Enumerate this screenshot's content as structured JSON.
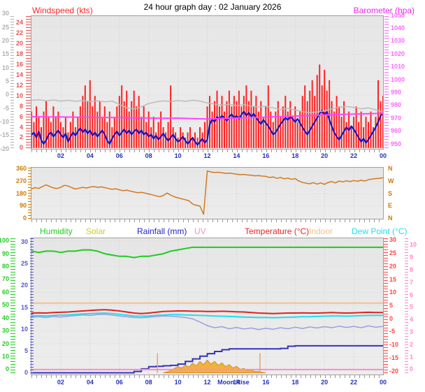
{
  "title": "24 hour graph day : 02 January 2026",
  "x_axis": {
    "labels": [
      "02",
      "04",
      "06",
      "08",
      "10",
      "12",
      "14",
      "16",
      "18",
      "20",
      "22",
      "00"
    ],
    "hours": [
      2,
      4,
      6,
      8,
      10,
      12,
      14,
      16,
      18,
      20,
      22,
      24
    ]
  },
  "legend": [
    {
      "label": "Humidity",
      "color": "#22cc22"
    },
    {
      "label": "Solar",
      "color": "#cccc22"
    },
    {
      "label": "Rainfall (mm)",
      "color": "#2222cc"
    },
    {
      "label": "UV",
      "color": "#ff88cc"
    },
    {
      "label": "Temperature (°C)",
      "color": "#ee2222"
    },
    {
      "label": "Indoor",
      "color": "#f0c090"
    },
    {
      "label": "Dew Point (°C)",
      "color": "#22ddee"
    }
  ],
  "annotations": {
    "moon_rise": "Moon Rise",
    "moon_rise_hour": 12.7
  },
  "chart_data": [
    {
      "id": "wind",
      "type": "composite",
      "title_left": "Windspeed (kts)",
      "title_right": "Barometer (hpa)",
      "grid_axis": "gray",
      "axes": {
        "gray": {
          "color": "#b0b0b0",
          "v_top": 29.2,
          "v_bottom": -20,
          "tick_values": [
            30,
            25,
            20,
            15,
            10,
            5,
            0,
            -5,
            -10,
            -15,
            -20
          ]
        },
        "wind": {
          "color": "#e85050",
          "v_top": 25.3,
          "v_bottom": -0.15,
          "tick_values": [
            24,
            22,
            20,
            18,
            16,
            14,
            12,
            10,
            8,
            6,
            4,
            2,
            0
          ]
        },
        "baro": {
          "color": "#ff66ff",
          "v_top": 1049.5,
          "v_bottom": 946.2,
          "tick_values": [
            1050,
            1040,
            1030,
            1020,
            1010,
            1000,
            990,
            980,
            970,
            960,
            950
          ]
        }
      },
      "series": [
        {
          "name": "wind-gust-bars",
          "axis": "wind",
          "type": "bars",
          "color": "#ff2020",
          "width": 2,
          "x0": 0,
          "dx": 0.166667,
          "values": [
            7,
            5,
            8,
            6,
            4,
            7,
            9,
            6,
            5,
            8,
            6,
            7,
            5,
            4,
            6,
            3,
            5,
            7,
            4,
            6,
            8,
            10,
            12,
            9,
            13,
            8,
            10,
            7,
            9,
            6,
            8,
            5,
            7,
            4,
            6,
            8,
            10,
            12,
            9,
            11,
            7,
            9,
            11,
            8,
            10,
            6,
            8,
            5,
            7,
            4,
            6,
            3,
            5,
            7,
            4,
            3,
            5,
            12,
            4,
            3,
            2,
            4,
            3,
            2,
            3,
            4,
            2,
            3,
            2,
            4,
            3,
            5,
            8,
            10,
            7,
            9,
            11,
            8,
            10,
            7,
            9,
            11,
            8,
            10,
            9,
            11,
            8,
            10,
            12,
            9,
            11,
            8,
            10,
            7,
            9,
            6,
            8,
            12,
            7,
            5,
            7,
            9,
            6,
            8,
            10,
            7,
            9,
            6,
            8,
            5,
            7,
            10,
            12,
            9,
            11,
            13,
            10,
            14,
            16,
            12,
            15,
            11,
            13,
            9,
            7,
            10,
            8,
            6,
            9,
            5,
            7,
            4,
            6,
            8,
            5,
            7,
            4,
            6,
            5,
            7,
            4,
            6,
            13,
            9,
            10
          ]
        },
        {
          "name": "wind-average",
          "axis": "wind",
          "type": "line",
          "color": "#0011cc",
          "width": 2,
          "x0": 0,
          "dx": 0.166667,
          "values": [
            2.5,
            3,
            2,
            3.2,
            1.5,
            0.8,
            1.5,
            2.6,
            3,
            2.2,
            2.8,
            3.4,
            2.6,
            2,
            2.8,
            1.2,
            2.2,
            3,
            2.4,
            3.2,
            3.8,
            3,
            3.6,
            2.8,
            3.4,
            2.4,
            3,
            2.2,
            2.8,
            3.4,
            2.6,
            1.4,
            0.8,
            1.8,
            2.6,
            3.2,
            2.4,
            3,
            3.6,
            2.8,
            3.4,
            2.6,
            3.2,
            3.6,
            2.8,
            3.4,
            2.6,
            3,
            2.2,
            2.6,
            1.8,
            2.4,
            1.6,
            2.2,
            2.8,
            2,
            1.4,
            2,
            2.6,
            1.8,
            1.2,
            1.6,
            2.2,
            1.4,
            0.8,
            1.4,
            2,
            1.2,
            0.6,
            1.2,
            1.8,
            1,
            1.6,
            4.5,
            5.5,
            5,
            6,
            5.5,
            6.2,
            5.8,
            5.2,
            6,
            6.5,
            5.8,
            6.2,
            5.6,
            6.4,
            7,
            6.2,
            6.8,
            6,
            6.6,
            5.8,
            5.2,
            4.6,
            5.4,
            4.8,
            4.2,
            3.4,
            2.6,
            3,
            3.8,
            4.6,
            5.2,
            5.8,
            5.4,
            6,
            5.6,
            5,
            5.6,
            4.8,
            4,
            3.2,
            2.6,
            3.4,
            4.2,
            5,
            5.8,
            6.6,
            7.2,
            6.4,
            7,
            5.4,
            4.2,
            3,
            2.2,
            1.6,
            2.4,
            3.2,
            4,
            3.4,
            4.2,
            3.6,
            2.8,
            2,
            1.2,
            1.8,
            1,
            1.6,
            2.4,
            3.2,
            4,
            5,
            6.2,
            6.8
          ]
        },
        {
          "name": "gray-line",
          "axis": "gray",
          "type": "line",
          "color": "#bcbcbc",
          "width": 1.5,
          "x0": 0,
          "dx": 0.5,
          "values": [
            -2,
            -1.8,
            -2.2,
            -1.9,
            -2.3,
            -2,
            -2.4,
            -2.1,
            -2.5,
            -2.2,
            -2.6,
            -2.3,
            -3.5,
            -4.8,
            -5.2,
            -4.4,
            -3.2,
            -2.6,
            -2.2,
            -2.5,
            -2.1,
            -2.4,
            -2,
            -2.3,
            -3,
            -3.4,
            -3.8,
            -3.5,
            -4,
            -3.6,
            -4.2,
            -4.5,
            -4.2,
            -4.8,
            -5.4,
            -5,
            -5.6,
            -6.2,
            -6.6,
            -6.3,
            -6,
            -5.2,
            -4.6,
            -4.3,
            -4.6,
            -5.2,
            -4.8,
            -5.6,
            -6.4
          ]
        },
        {
          "name": "barometer",
          "axis": "baro",
          "type": "line",
          "color": "#ff44ff",
          "width": 2,
          "x0": 0,
          "dx": 1,
          "values": [
            971.2,
            971.1,
            971,
            970.9,
            970.7,
            970.6,
            970.5,
            970.3,
            970.2,
            970,
            970.1,
            969.7,
            969.4,
            969.8,
            970.1,
            970.5,
            970.9,
            971.3,
            971.7,
            972.1,
            972.5,
            972.9,
            973.2,
            973.5,
            973.8
          ]
        }
      ]
    },
    {
      "id": "dir",
      "type": "line",
      "grid_axis": "deg",
      "axes": {
        "deg": {
          "color": "#cc7a00",
          "v_top": 369,
          "v_bottom": -2,
          "tick_values": [
            360,
            270,
            180,
            90,
            0
          ]
        },
        "compass": {
          "color": "#cc7a00",
          "v_top": 369,
          "v_bottom": -2,
          "tick_values": [
            360,
            270,
            180,
            90,
            0
          ],
          "tick_texts": [
            "N",
            "W",
            "S",
            "E",
            "N"
          ]
        }
      },
      "series": [
        {
          "name": "wind-direction",
          "axis": "deg",
          "type": "line",
          "color": "#d2791e",
          "width": 1.5,
          "x0": 0,
          "dx": 0.25,
          "values": [
            215,
            224,
            218,
            232,
            244,
            233,
            222,
            218,
            226,
            241,
            236,
            224,
            214,
            220,
            226,
            221,
            228,
            232,
            226,
            230,
            224,
            218,
            212,
            216,
            208,
            202,
            206,
            199,
            193,
            187,
            190,
            184,
            178,
            172,
            164,
            158,
            166,
            185,
            170,
            158,
            150,
            143,
            136,
            128,
            105,
            95,
            90,
            30,
            345,
            338,
            334,
            336,
            332,
            328,
            330,
            326,
            322,
            318,
            320,
            316,
            314,
            310,
            312,
            308,
            306,
            298,
            302,
            292,
            298,
            288,
            294,
            284,
            290,
            272,
            262,
            256,
            252,
            260,
            250,
            258,
            248,
            262,
            268,
            258,
            272,
            266,
            274,
            268,
            276,
            270,
            278,
            272,
            282,
            286,
            290,
            292,
            296
          ]
        }
      ]
    },
    {
      "id": "multi",
      "type": "composite",
      "grid_axis": "hum",
      "axes": {
        "hum": {
          "color": "#22cc22",
          "v_top": 102,
          "v_bottom": -3.8,
          "tick_values": [
            100,
            90,
            80,
            70,
            60,
            50,
            40,
            30,
            20,
            10,
            0
          ]
        },
        "rain": {
          "color": "#5555cc",
          "v_top": 30.9,
          "v_bottom": -0.4,
          "tick_values": [
            30,
            25,
            20,
            15,
            10,
            5,
            0
          ]
        },
        "temp": {
          "color": "#ff4444",
          "v_top": 30.8,
          "v_bottom": -21.3,
          "tick_values": [
            30,
            25,
            20,
            15,
            10,
            5,
            0,
            -5,
            -10,
            -15,
            -20
          ]
        },
        "uv": {
          "color": "#ff88cc",
          "v_top": 10.55,
          "v_bottom": -0.4,
          "tick_values": [
            10,
            9,
            8,
            7,
            6,
            5,
            4,
            3,
            2,
            1,
            0
          ]
        }
      },
      "series": [
        {
          "name": "humidity",
          "axis": "hum",
          "type": "line",
          "color": "#1ecc1e",
          "width": 2,
          "x0": 0,
          "dx": 0.5,
          "values": [
            92,
            91,
            92,
            92,
            91,
            92,
            92,
            93,
            93,
            92,
            90,
            89,
            88,
            88,
            87,
            88,
            88,
            89,
            90,
            92,
            93,
            94,
            95,
            95,
            95,
            95,
            95,
            95,
            95,
            95,
            95,
            95,
            95,
            95,
            95,
            95,
            95,
            95,
            95,
            95,
            95,
            95,
            95,
            95,
            95,
            95,
            95,
            95,
            95
          ]
        },
        {
          "name": "indoor",
          "axis": "temp",
          "type": "line",
          "color": "#f5c08a",
          "width": 2,
          "x0": 0,
          "dx": 24,
          "values": [
            6,
            6
          ]
        },
        {
          "name": "temperature",
          "axis": "temp",
          "type": "line",
          "color": "#dd2222",
          "width": 2,
          "x0": 0,
          "dx": 0.5,
          "values": [
            2.2,
            2.3,
            2.2,
            2.4,
            2.5,
            2.6,
            2.8,
            3,
            3.2,
            3.4,
            3.5,
            3.3,
            3,
            2.6,
            2.2,
            2,
            2.2,
            2.5,
            2.8,
            2.9,
            3,
            3,
            2.9,
            2.9,
            2.8,
            2.8,
            2.9,
            2.8,
            2.7,
            2.6,
            2.4,
            2.2,
            2.1,
            2,
            2.1,
            2.2,
            2.2,
            2.3,
            2.2,
            2.2,
            2.3,
            2.4,
            2.3,
            2.2,
            2.3,
            2.4,
            2.5,
            2.4,
            2.4
          ]
        },
        {
          "name": "dew-point",
          "axis": "temp",
          "type": "line",
          "color": "#22ddee",
          "width": 2,
          "x0": 0,
          "dx": 0.5,
          "values": [
            1.2,
            1.2,
            1.1,
            1.3,
            1.4,
            1.5,
            1.7,
            1.9,
            2,
            2.1,
            2.2,
            2,
            1.7,
            1.4,
            1.1,
            1,
            1.1,
            1.3,
            1.5,
            1.6,
            1.6,
            1.5,
            1.4,
            1.3,
            1.2,
            1.1,
            1,
            0.9,
            0.8,
            0.7,
            0.6,
            0.5,
            0.5,
            0.4,
            0.5,
            0.6,
            0.7,
            0.8,
            0.8,
            0.9,
            1,
            1.1,
            1.1,
            1,
            1.1,
            1.2,
            1.3,
            1.3,
            1.3
          ]
        },
        {
          "name": "lavender-unlabeled",
          "axis": "temp",
          "type": "line",
          "color": "#9aa0dd",
          "width": 1.5,
          "x0": 0,
          "dx": 0.5,
          "values": [
            0.6,
            0.8,
            0.5,
            0.9,
            0.7,
            1,
            1.2,
            1.5,
            1.3,
            1.6,
            1.7,
            1.4,
            1.1,
            0.8,
            0.5,
            0.4,
            0.6,
            0.9,
            1.1,
            1,
            0.8,
            0.5,
            0,
            -1.2,
            -2.6,
            -3.4,
            -3,
            -3.8,
            -3.3,
            -3.9,
            -3.5,
            -4.1,
            -3.6,
            -4,
            -3.4,
            -3.8,
            -3.2,
            -3.7,
            -3.1,
            -3.5,
            -3,
            -3.4,
            -2.8,
            -3.3,
            -2.9,
            -3.4,
            -2.7,
            -3.2,
            -2.9
          ]
        },
        {
          "name": "solar",
          "axis": "rain",
          "type": "area",
          "color": "#f0b23e",
          "stroke": "#d88f20",
          "x0": 9,
          "dx": 0.25,
          "values": [
            0,
            0.2,
            0.5,
            1,
            1.4,
            1.1,
            1.8,
            1.3,
            2.2,
            1.6,
            2.6,
            1.9,
            2.9,
            2,
            2.6,
            1.7,
            2.3,
            1.4,
            1.9,
            1.1,
            1.5,
            0.8,
            1,
            0.5,
            0.6,
            0.3,
            0.3,
            0.1,
            0
          ]
        },
        {
          "name": "rainfall",
          "axis": "rain",
          "type": "steps",
          "color": "#3333bb",
          "width": 2,
          "x0": 0,
          "dx": 0.5,
          "values": [
            0,
            0,
            0,
            0,
            0,
            0,
            0,
            0,
            0,
            0,
            0,
            0,
            0,
            0,
            0.3,
            0.9,
            1.4,
            1.5,
            1.6,
            1.7,
            2,
            2.6,
            3.2,
            3.8,
            4.4,
            4.9,
            5.3,
            5.5,
            5.5,
            5.5,
            5.5,
            5.5,
            5.5,
            5.5,
            5.6,
            6.1,
            6.2,
            6.2,
            6.2,
            6.2,
            6.2,
            6.2,
            6.2,
            6.2,
            6.2,
            6.2,
            6.2,
            6.2,
            6.2
          ]
        },
        {
          "name": "uv",
          "axis": "uv",
          "type": "line",
          "color": "#ff88cc",
          "width": 2,
          "x0": 0,
          "dx": 24,
          "values": [
            0,
            0
          ]
        },
        {
          "name": "sun-markers",
          "axis": "rain",
          "type": "vlines",
          "color": "#e8a070",
          "width": 1.5,
          "x": [
            8.6,
            15.6
          ],
          "v0": 0,
          "v1": 4.5
        }
      ]
    }
  ]
}
